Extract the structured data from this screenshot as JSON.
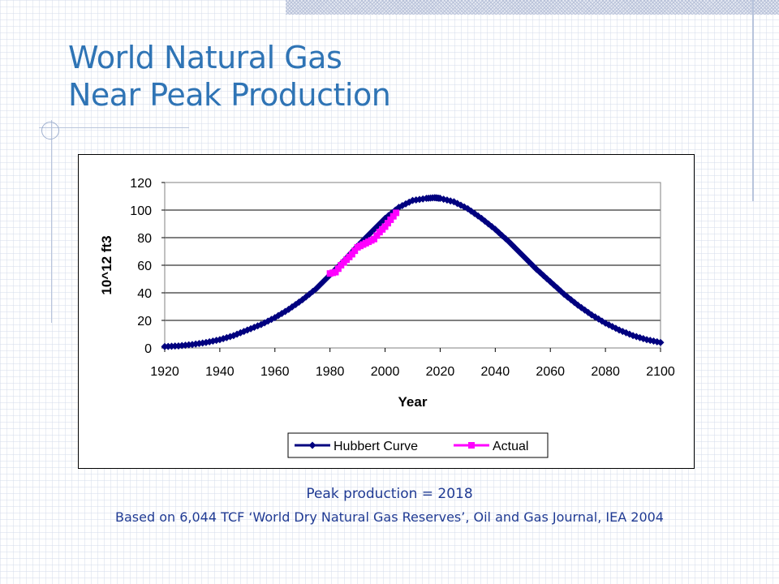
{
  "slide": {
    "title_line1": "World Natural Gas",
    "title_line2": "Near Peak Production",
    "caption_line1": "Peak production = 2018",
    "caption_line2": "Based on 6,044 TCF ‘World Dry Natural Gas Reserves’, Oil and Gas Journal, IEA 2004",
    "title_color": "#2f74b5",
    "caption_color": "#1f3a93"
  },
  "chart_data": {
    "type": "line",
    "title": "",
    "xlabel": "Year",
    "ylabel": "10^12 ft3",
    "xlim": [
      1920,
      2100
    ],
    "ylim": [
      0,
      120
    ],
    "x_ticks": [
      1920,
      1940,
      1960,
      1980,
      2000,
      2020,
      2040,
      2060,
      2080,
      2100
    ],
    "y_ticks": [
      0,
      20,
      40,
      60,
      80,
      100,
      120
    ],
    "grid": "horizontal",
    "legend_position": "bottom",
    "series": [
      {
        "name": "Hubbert Curve",
        "color": "#00007f",
        "marker": "diamond",
        "x": [
          1920,
          1925,
          1930,
          1935,
          1940,
          1945,
          1950,
          1955,
          1960,
          1965,
          1970,
          1975,
          1980,
          1985,
          1990,
          1995,
          2000,
          2005,
          2010,
          2015,
          2018,
          2020,
          2025,
          2030,
          2035,
          2040,
          2045,
          2050,
          2055,
          2060,
          2065,
          2070,
          2075,
          2080,
          2085,
          2090,
          2095,
          2100
        ],
        "y": [
          1,
          1.5,
          2.5,
          4,
          6,
          9,
          13,
          17,
          22,
          28,
          35,
          43,
          53,
          63,
          74,
          84,
          94,
          102,
          107,
          108.5,
          109,
          108.5,
          106,
          101,
          94,
          86,
          77,
          67,
          57,
          48,
          39,
          31,
          24,
          18,
          13,
          9,
          6,
          4
        ]
      },
      {
        "name": "Actual",
        "color": "#ff00ff",
        "marker": "square",
        "x": [
          1980,
          1982,
          1984,
          1986,
          1988,
          1990,
          1992,
          1994,
          1996,
          1998,
          2000,
          2002,
          2004
        ],
        "y": [
          54,
          55,
          60,
          64,
          68,
          73,
          75,
          77,
          79,
          84,
          88,
          93,
          98
        ]
      }
    ]
  }
}
